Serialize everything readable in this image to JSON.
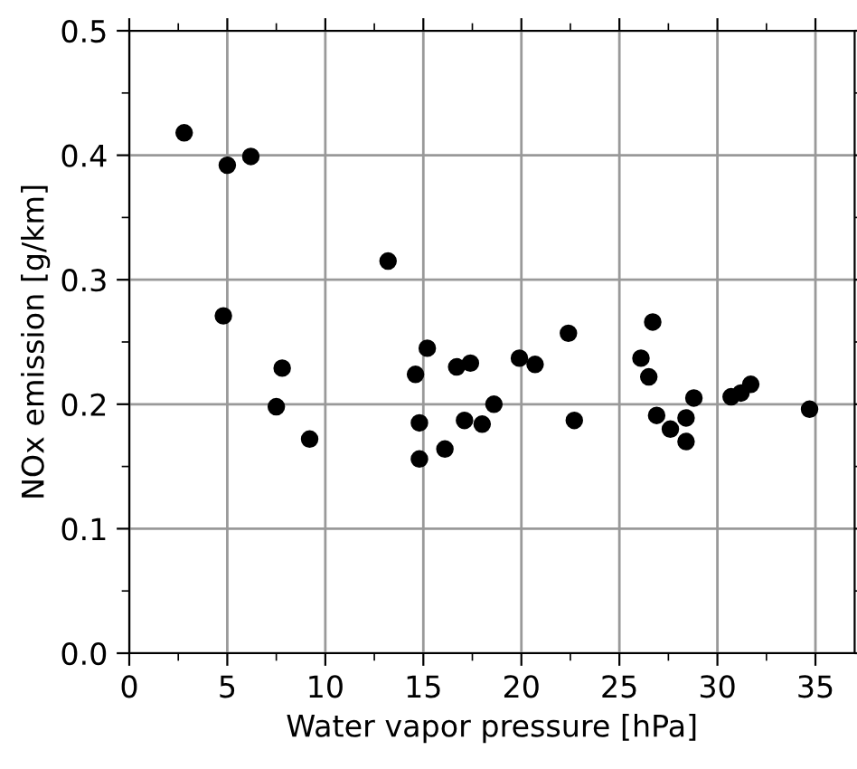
{
  "chart_data": {
    "type": "scatter",
    "xlabel": "Water vapor pressure [hPa]",
    "ylabel": "NOx emission [g/km]",
    "x": [
      2.8,
      5.0,
      6.2,
      4.8,
      13.2,
      7.8,
      7.5,
      9.2,
      15.2,
      14.6,
      14.8,
      14.8,
      16.1,
      16.7,
      17.4,
      17.1,
      18.0,
      18.6,
      19.9,
      20.7,
      22.4,
      22.7,
      26.7,
      26.1,
      26.5,
      26.9,
      27.6,
      28.4,
      28.4,
      28.8,
      30.7,
      31.2,
      31.7,
      34.7
    ],
    "series": [
      {
        "color": "#000000",
        "values": [
          0.418,
          0.392,
          0.399,
          0.271,
          0.315,
          0.229,
          0.198,
          0.172,
          0.245,
          0.224,
          0.185,
          0.156,
          0.164,
          0.23,
          0.233,
          0.187,
          0.184,
          0.2,
          0.237,
          0.232,
          0.257,
          0.187,
          0.266,
          0.237,
          0.222,
          0.191,
          0.18,
          0.189,
          0.17,
          0.205,
          0.206,
          0.209,
          0.216,
          0.196
        ]
      }
    ],
    "xlim": [
      0,
      37
    ],
    "ylim": [
      0,
      0.5
    ],
    "xticks": [
      0,
      5,
      10,
      15,
      20,
      25,
      30,
      35
    ],
    "yticks": [
      {
        "value": 0,
        "label": "0.0"
      },
      {
        "value": 0.1,
        "label": "0.1"
      },
      {
        "value": 0.2,
        "label": "0.2"
      },
      {
        "value": 0.3,
        "label": "0.3"
      },
      {
        "value": 0.4,
        "label": "0.4"
      },
      {
        "value": 0.5,
        "label": "0.5"
      }
    ],
    "grid": true,
    "marker": "circle"
  }
}
